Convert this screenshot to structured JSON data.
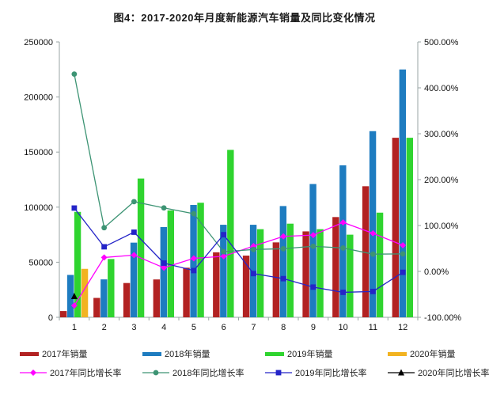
{
  "title": "图4：2017-2020年月度新能源汽车销量及同比变化情况",
  "colors": {
    "bar_2017": "#b22222",
    "bar_2018": "#1e7cc0",
    "bar_2019": "#2fd42f",
    "bar_2020": "#f2b321",
    "line_2017": "#ff00ff",
    "line_2018": "#3d9474",
    "line_2019": "#2424c8",
    "line_2020": "#000000",
    "axis": "#9aa6a6",
    "tick_text": "#111111",
    "title_text": "#1a1a1a"
  },
  "chart_data": {
    "type": "bar",
    "secondary_type": "line",
    "title": "图4：2017-2020年月度新能源汽车销量及同比变化情况",
    "grid": false,
    "legend_position": "bottom",
    "categories": [
      "1",
      "2",
      "3",
      "4",
      "5",
      "6",
      "7",
      "8",
      "9",
      "10",
      "11",
      "12"
    ],
    "left_axis": {
      "min": 0,
      "max": 250000,
      "step": 50000,
      "tick_labels": [
        "0",
        "50000",
        "100000",
        "150000",
        "200000",
        "250000"
      ]
    },
    "right_axis": {
      "min": -100,
      "max": 500,
      "step": 100,
      "tick_labels": [
        "-100.00%",
        "0.00%",
        "100.00%",
        "200.00%",
        "300.00%",
        "400.00%",
        "500.00%"
      ]
    },
    "bar_series": [
      {
        "name": "2017年销量",
        "axis": "left",
        "color": "#b22222",
        "values": [
          5682,
          17596,
          31120,
          34361,
          45000,
          59000,
          56000,
          68000,
          78000,
          91000,
          119000,
          163000
        ]
      },
      {
        "name": "2018年销量",
        "axis": "left",
        "color": "#1e7cc0",
        "values": [
          38470,
          34420,
          67778,
          81904,
          102000,
          84000,
          84000,
          101000,
          121000,
          138000,
          169000,
          225000
        ]
      },
      {
        "name": "2019年销量",
        "axis": "left",
        "color": "#2fd42f",
        "values": [
          95700,
          52900,
          126000,
          97000,
          104000,
          152000,
          80000,
          85000,
          80000,
          75000,
          95000,
          163000
        ]
      },
      {
        "name": "2020年销量",
        "axis": "left",
        "color": "#f2b321",
        "values": [
          44000,
          null,
          null,
          null,
          null,
          null,
          null,
          null,
          null,
          null,
          null,
          null
        ]
      }
    ],
    "line_series": [
      {
        "name": "2017年同比增长率",
        "axis": "right",
        "color": "#ff00ff",
        "marker": "diamond",
        "values_pct": [
          -74.4,
          30.3,
          35.6,
          7.9,
          28.4,
          33.0,
          55.2,
          76.3,
          79.1,
          106.7,
          83.0,
          56.8
        ]
      },
      {
        "name": "2018年同比增长率",
        "axis": "right",
        "color": "#3d9474",
        "marker": "circle",
        "values_pct": [
          430.0,
          95.2,
          152.0,
          138.4,
          125.6,
          42.9,
          47.7,
          49.5,
          54.8,
          51.0,
          37.6,
          38.2
        ]
      },
      {
        "name": "2019年同比增长率",
        "axis": "right",
        "color": "#2424c8",
        "marker": "square",
        "values_pct": [
          138.0,
          53.6,
          85.4,
          18.1,
          1.8,
          80.0,
          -4.7,
          -15.8,
          -34.2,
          -45.6,
          -43.7,
          -2.0
        ]
      },
      {
        "name": "2020年同比增长率",
        "axis": "right",
        "color": "#000000",
        "marker": "triangle",
        "values_pct": [
          -54.4,
          null,
          null,
          null,
          null,
          null,
          null,
          null,
          null,
          null,
          null,
          null
        ]
      }
    ]
  }
}
